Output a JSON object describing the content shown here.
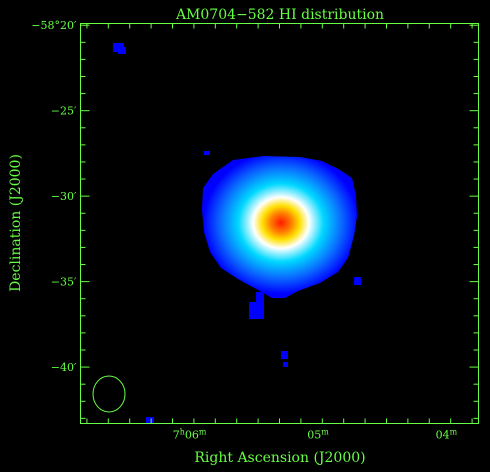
{
  "title": "AM0704−582   HI distribution",
  "xlabel": "Right Ascension (J2000)",
  "ylabel": "Declination (J2000)",
  "colors": {
    "background": "#000000",
    "axes": "#66ff44",
    "beam": "#66ff44",
    "colormap": [
      "#0000ff",
      "#0a6bff",
      "#00d8ff",
      "#ffffff",
      "#ffe000",
      "#ff7a00",
      "#ff1a00"
    ]
  },
  "x_ticks": [
    {
      "ra_min": 6.0,
      "h": "7",
      "m": "06",
      "s": "m"
    },
    {
      "ra_min": 5.0,
      "h": "",
      "m": "05",
      "s": "m"
    },
    {
      "ra_min": 4.0,
      "h": "",
      "m": "04",
      "s": "m"
    }
  ],
  "y_ticks": [
    {
      "dec_arcmin": -20,
      "label": "−58°20′"
    },
    {
      "dec_arcmin": -25,
      "label": "−25′"
    },
    {
      "dec_arcmin": -30,
      "label": "−30′"
    },
    {
      "dec_arcmin": -35,
      "label": "−35′"
    },
    {
      "dec_arcmin": -40,
      "label": "−40′"
    }
  ],
  "chart_data": {
    "type": "heatmap",
    "title": "AM0704−582   HI distribution",
    "xlabel": "Right Ascension (J2000)",
    "ylabel": "Declination (J2000)",
    "x_axis": {
      "unit": "minutes of RA (7h)",
      "range": [
        6.85,
        3.75
      ],
      "ticks": [
        "7h06m",
        "05m",
        "04m"
      ]
    },
    "y_axis": {
      "unit": "arcmin offset from −58°",
      "range": [
        -43.3,
        -19.9
      ],
      "ticks": [
        -20,
        -25,
        -30,
        -35,
        -40
      ]
    },
    "peak": {
      "ra_min": 5.35,
      "dec_arcmin": -31.3
    },
    "features": [
      {
        "name": "main HI disk",
        "ra_min": 5.35,
        "dec_arcmin": -31.1
      },
      {
        "name": "clump",
        "ra_min": 6.6,
        "dec_arcmin": -20.6
      },
      {
        "name": "clump",
        "ra_min": 5.45,
        "dec_arcmin": -36.5
      },
      {
        "name": "clump",
        "ra_min": 5.28,
        "dec_arcmin": -39.2
      },
      {
        "name": "clump",
        "ra_min": 4.73,
        "dec_arcmin": -34.7
      },
      {
        "name": "clump",
        "ra_min": 6.3,
        "dec_arcmin": -43.1
      }
    ],
    "beam": {
      "ra_min": 6.6,
      "dec_arcmin": -41.5
    }
  }
}
